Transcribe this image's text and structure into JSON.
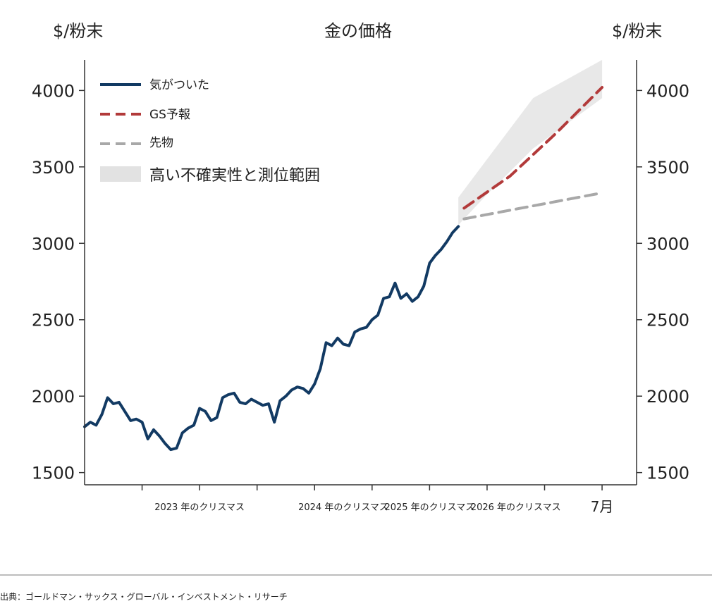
{
  "chart_data": {
    "type": "line",
    "title": "金の価格",
    "ylabel_left": "$/粉末",
    "ylabel_right": "$/粉末",
    "ylim": [
      1420,
      4200
    ],
    "yticks": [
      1500,
      2000,
      2500,
      3000,
      3500,
      4000
    ],
    "ytick_labels": [
      "1500",
      "2000",
      "2500",
      "3000",
      "3500",
      "4000"
    ],
    "xlim": [
      0,
      48
    ],
    "xticks": [
      5,
      10,
      15,
      20,
      25,
      30,
      35,
      40,
      45
    ],
    "xtick_labels": [
      {
        "x": 10,
        "label": "2023 年のクリスマス"
      },
      {
        "x": 22.5,
        "label": "2024 年のクリスマス"
      },
      {
        "x": 30,
        "label": "2025 年のクリスマス"
      },
      {
        "x": 37.5,
        "label": "2026 年のクリスマス"
      },
      {
        "x": 45,
        "label": "7月"
      }
    ],
    "legend_position": "top-left",
    "series": [
      {
        "name": "気がついた",
        "style": "solid",
        "color": "#123a63",
        "x": [
          0,
          0.5,
          1,
          1.5,
          2,
          2.5,
          3,
          3.5,
          4,
          4.5,
          5,
          5.5,
          6,
          6.5,
          7,
          7.5,
          8,
          8.5,
          9,
          9.5,
          10,
          10.5,
          11,
          11.5,
          12,
          12.5,
          13,
          13.5,
          14,
          14.5,
          15,
          15.5,
          16,
          16.5,
          17,
          17.5,
          18,
          18.5,
          19,
          19.5,
          20,
          20.5,
          21,
          21.5,
          22,
          22.5,
          23,
          23.5,
          24,
          24.5,
          25,
          25.5,
          26,
          26.5,
          27,
          27.5,
          28,
          28.5,
          29,
          29.5,
          30,
          30.5,
          31,
          31.5,
          32,
          32.5
        ],
        "y": [
          1800,
          1830,
          1810,
          1880,
          1990,
          1950,
          1960,
          1900,
          1840,
          1850,
          1830,
          1720,
          1780,
          1740,
          1690,
          1650,
          1660,
          1760,
          1790,
          1810,
          1920,
          1900,
          1840,
          1860,
          1990,
          2010,
          2020,
          1960,
          1950,
          1980,
          1960,
          1940,
          1950,
          1830,
          1970,
          2000,
          2040,
          2060,
          2050,
          2020,
          2080,
          2180,
          2350,
          2330,
          2380,
          2340,
          2330,
          2420,
          2440,
          2450,
          2500,
          2530,
          2640,
          2650,
          2740,
          2640,
          2670,
          2620,
          2650,
          2720,
          2870,
          2920,
          2960,
          3010,
          3070,
          3110
        ]
      },
      {
        "name": "GS予報",
        "style": "dashed",
        "color": "#b23a3a",
        "x": [
          33,
          37,
          41,
          45
        ],
        "y": [
          3230,
          3440,
          3720,
          4020
        ]
      },
      {
        "name": "先物",
        "style": "dashed",
        "color": "#a8a8a8",
        "x": [
          33,
          45
        ],
        "y": [
          3160,
          3330
        ]
      },
      {
        "name": "高い不確実性と測位範囲",
        "style": "band",
        "color": "#d9d9d9",
        "x": [
          32.5,
          35,
          39,
          45
        ],
        "y_low": [
          3120,
          3320,
          3620,
          3950
        ],
        "y_high": [
          3300,
          3550,
          3950,
          4200
        ]
      }
    ]
  },
  "source_text": "出典：ゴールドマン・サックス・グローバル・インベストメント・リサーチ"
}
